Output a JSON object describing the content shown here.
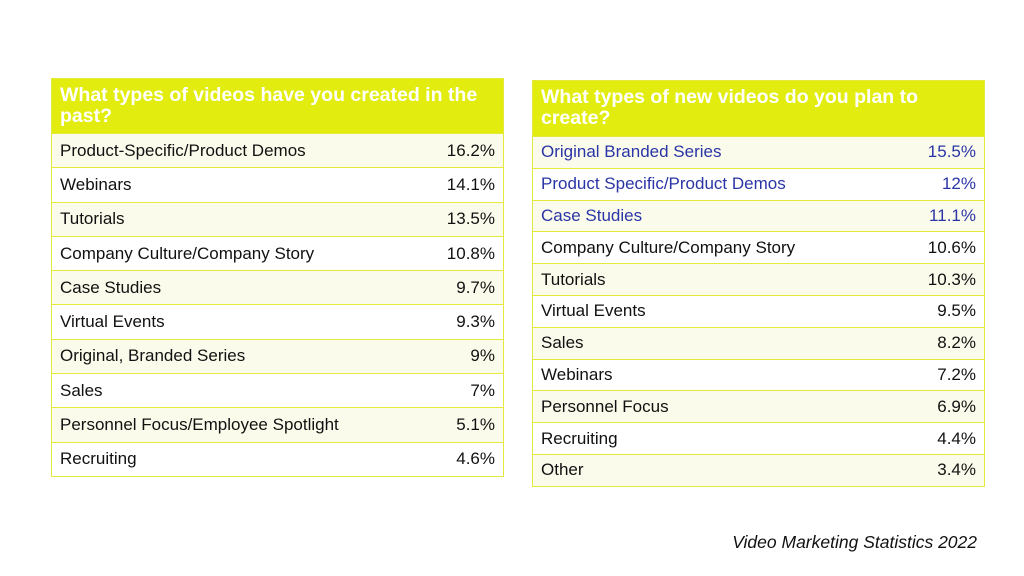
{
  "chart_data": [
    {
      "type": "table",
      "title": "What types of videos have you created in the past?",
      "rows": [
        {
          "label": "Product-Specific/Product Demos",
          "value": "16.2%"
        },
        {
          "label": "Webinars",
          "value": "14.1%"
        },
        {
          "label": "Tutorials",
          "value": "13.5%"
        },
        {
          "label": "Company Culture/Company Story",
          "value": "10.8%"
        },
        {
          "label": "Case Studies",
          "value": "9.7%"
        },
        {
          "label": "Virtual Events",
          "value": "9.3%"
        },
        {
          "label": "Original, Branded Series",
          "value": "9%"
        },
        {
          "label": "Sales",
          "value": "7%"
        },
        {
          "label": "Personnel Focus/Employee Spotlight",
          "value": "5.1%"
        },
        {
          "label": "Recruiting",
          "value": "4.6%"
        }
      ]
    },
    {
      "type": "table",
      "title": "What types of new videos do you plan to create?",
      "rows": [
        {
          "label": "Original Branded Series",
          "value": "15.5%",
          "highlight": true
        },
        {
          "label": "Product Specific/Product Demos",
          "value": "12%",
          "highlight": true
        },
        {
          "label": "Case Studies",
          "value": "11.1%",
          "highlight": true
        },
        {
          "label": "Company Culture/Company Story",
          "value": "10.6%"
        },
        {
          "label": "Tutorials",
          "value": "10.3%"
        },
        {
          "label": "Virtual Events",
          "value": "9.5%"
        },
        {
          "label": "Sales",
          "value": "8.2%"
        },
        {
          "label": "Webinars",
          "value": "7.2%"
        },
        {
          "label": "Personnel Focus",
          "value": "6.9%"
        },
        {
          "label": "Recruiting",
          "value": "4.4%"
        },
        {
          "label": "Other",
          "value": "3.4%"
        }
      ]
    }
  ],
  "source": "Video Marketing Statistics 2022",
  "colors": {
    "header_background": "#e2ec0e",
    "header_text": "#ffffff",
    "border": "#e3ea3c",
    "odd_row_background": "#fbfbec",
    "highlight_text": "#2a35a6"
  }
}
